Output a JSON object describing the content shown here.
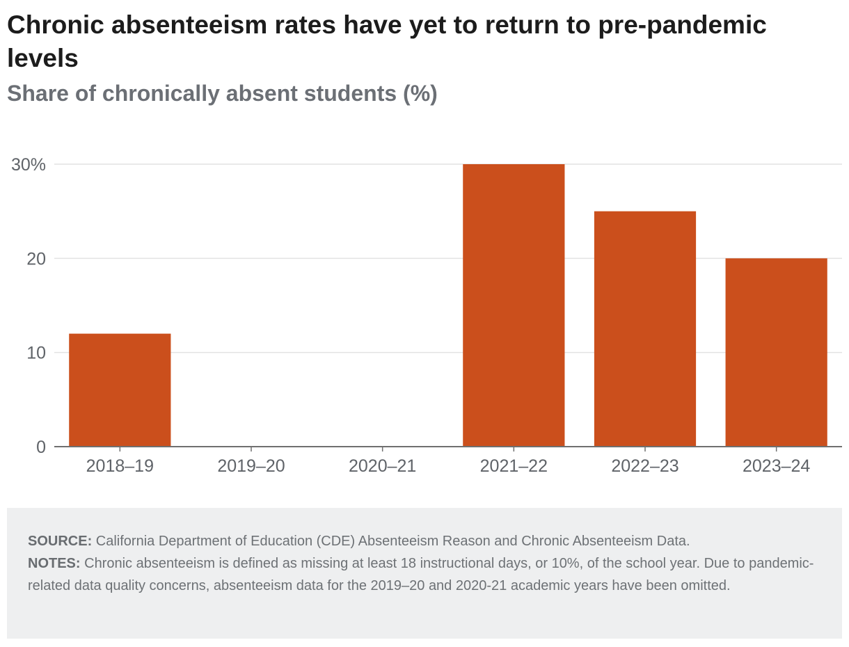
{
  "title": "Chronic absenteeism rates have yet to return to pre-pandemic levels",
  "subtitle": "Share of chronically absent students (%)",
  "colors": {
    "bar": "#cb4f1c",
    "grid": "#e2e2e2",
    "axis": "#6f6f6f",
    "tick_text": "#5f6368"
  },
  "chart_data": {
    "type": "bar",
    "title": "Chronic absenteeism rates have yet to return to pre-pandemic levels",
    "ylabel": "Share of chronically absent students (%)",
    "xlabel": "",
    "categories": [
      "2018–19",
      "2019–20",
      "2020–21",
      "2021–22",
      "2022–23",
      "2023–24"
    ],
    "values": [
      12,
      null,
      null,
      30,
      25,
      20
    ],
    "ylim": [
      0,
      30
    ],
    "yticks": [
      0,
      10,
      20,
      30
    ],
    "ytick_labels": [
      "0",
      "10",
      "20",
      "30%"
    ],
    "grid": true,
    "legend": "none"
  },
  "footer": {
    "source_label": "SOURCE:",
    "source_text": " California Department of Education (CDE) Absenteeism Reason and Chronic Absenteeism Data.",
    "notes_label": "NOTES:",
    "notes_text": " Chronic absenteeism is defined as missing at least 18 instructional days, or 10%, of the school year. Due to pandemic-related data quality concerns, absenteeism data for the 2019–20 and 2020-21 academic years have been omitted."
  }
}
